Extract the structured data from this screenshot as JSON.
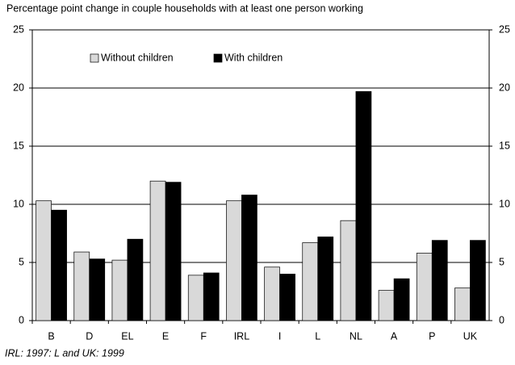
{
  "chart_data": {
    "type": "bar",
    "title": "Percentage point change in couple households with at least one person working",
    "note": "IRL: 1997: L and UK: 1999",
    "categories": [
      "B",
      "D",
      "EL",
      "E",
      "F",
      "IRL",
      "I",
      "L",
      "NL",
      "A",
      "P",
      "UK"
    ],
    "series": [
      {
        "name": "Without children",
        "color": "#d9d9d9",
        "values": [
          10.3,
          5.9,
          5.2,
          12.0,
          3.9,
          10.3,
          4.6,
          6.7,
          8.6,
          2.6,
          5.8,
          2.8
        ]
      },
      {
        "name": "With children",
        "color": "#000000",
        "values": [
          9.5,
          5.3,
          7.0,
          11.9,
          4.1,
          10.8,
          4.0,
          7.2,
          19.7,
          3.6,
          6.9,
          6.9
        ]
      }
    ],
    "ylim": [
      0,
      25
    ],
    "yticks": [
      0,
      5,
      10,
      15,
      20,
      25
    ],
    "grid": true,
    "legend": "upper left"
  }
}
